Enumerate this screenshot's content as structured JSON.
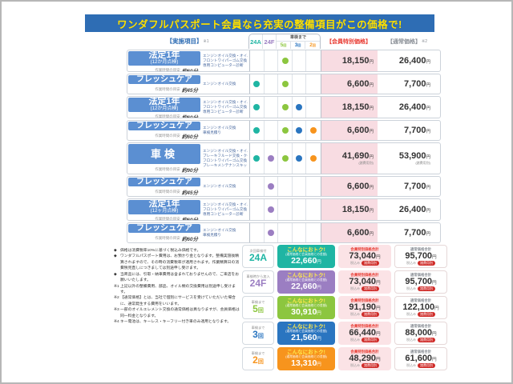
{
  "title": "ワンダフルパスポート会員なら充実の整備項目がこの価格で!",
  "colors": {
    "title_bg": "#2e6db4",
    "title_text": "#ffe100",
    "row_label_bg": "#5b8fd2",
    "member_cell_bg": "#f8dce2",
    "member_label_red": "#e8382f",
    "dot_columns": [
      "#1fb5a3",
      "#9b7ec2",
      "#8cc63f",
      "#2a75c0",
      "#f7941d"
    ]
  },
  "table": {
    "header": {
      "items_label": "【実施項目】",
      "items_note": "※1",
      "col_24a": "24A",
      "col_24f": "24F",
      "group_label": "車検まで",
      "counts": [
        "5回",
        "3回",
        "2回"
      ],
      "member_label": "【会員特別価格】",
      "normal_label": "【通常価格】",
      "normal_note": "※2"
    },
    "time_caption": "作業時間の目安",
    "yen": "円",
    "rows": [
      {
        "name": "法定1年",
        "name_sub": "(12か月点検)",
        "time": "約60分",
        "desc": [
          "エンジンオイル交換・オイルエレメント交換",
          "フロントワイパーゴム交換・キー電池交換",
          "専用コンピューター診断"
        ],
        "dots": [
          0,
          0,
          1,
          0,
          0
        ],
        "member": "18,150",
        "normal": "26,400",
        "price_note": ""
      },
      {
        "name": "フレッシュケア",
        "name_sub": "",
        "time": "約45分",
        "desc": [
          "エンジンオイル交換"
        ],
        "dots": [
          1,
          0,
          1,
          0,
          0
        ],
        "member": "6,600",
        "normal": "7,700",
        "price_note": ""
      },
      {
        "name": "法定1年",
        "name_sub": "(12か月点検)",
        "time": "約60分",
        "desc": [
          "エンジンオイル交換・オイルエレメント交換",
          "フロントワイパーゴム交換・キー電池交換",
          "専用コンピューター診断"
        ],
        "dots": [
          1,
          0,
          1,
          1,
          0
        ],
        "member": "18,150",
        "normal": "26,400",
        "price_note": ""
      },
      {
        "name": "フレッシュケア",
        "name_sub": "",
        "time": "約60分",
        "desc": [
          "エンジンオイル交換",
          "車検見積り"
        ],
        "dots": [
          1,
          0,
          1,
          1,
          1
        ],
        "member": "6,600",
        "normal": "7,700",
        "price_note": ""
      },
      {
        "name": "車検",
        "name_sub": "",
        "time": "約90分",
        "desc": [
          "エンジンオイル交換・オイルエレメント交換",
          "ブレーキフルード交換・クーラントプラスプレミアム",
          "フロントワイパーゴム交換・キー電池交換",
          "ブレーキメンテナンスキット・専用コンピューター診断"
        ],
        "dots": [
          1,
          1,
          1,
          1,
          1
        ],
        "member": "41,690",
        "normal": "53,900",
        "price_note": "(諸費用別)"
      },
      {
        "name": "フレッシュケア",
        "name_sub": "",
        "time": "約45分",
        "desc": [
          "エンジンオイル交換"
        ],
        "dots": [
          0,
          1,
          0,
          0,
          0
        ],
        "member": "6,600",
        "normal": "7,700",
        "price_note": ""
      },
      {
        "name": "法定1年",
        "name_sub": "(12ヶ月点検)",
        "time": "約60分",
        "desc": [
          "エンジンオイル交換・オイルエレメント交換",
          "フロントワイパーゴム交換・キー電池交換",
          "専用コンピューター診断"
        ],
        "dots": [
          0,
          1,
          0,
          0,
          0
        ],
        "member": "18,150",
        "normal": "26,400",
        "price_note": ""
      },
      {
        "name": "フレッシュケア",
        "name_sub": "",
        "time": "約60分",
        "desc": [
          "エンジンオイル交換",
          "車検見積り"
        ],
        "dots": [
          0,
          1,
          0,
          0,
          0
        ],
        "member": "6,600",
        "normal": "7,700",
        "price_note": ""
      }
    ]
  },
  "notes": [
    {
      "mark": "◆",
      "text": "価格は消費税率10%に基づく税込み価格です。"
    },
    {
      "mark": "◆",
      "text": "ワンダフルパスポート費用は、お預かり金となります。整備実施後精算されますので、その時の消費税率が適用されます。作業精算日の消費税見直しにつきましては別途申し受けます。"
    },
    {
      "mark": "◆",
      "text": "当商品には、引取・納車費用は含まれておりませんので、ご来店をお願いいたします。"
    },
    {
      "mark": "※1",
      "text": "上記以外の整備費用、部品、オイル類の交換費用は別途申し受けます。"
    },
    {
      "mark": "※2",
      "text": "【通常価格】とは、当社で個別にサービスを受けていただいた場合に、通常発生する費用をいいます。"
    },
    {
      "mark": "※3",
      "text": "一部のオイルエレメント交換の通常価格は異なりますが、会員価格は同一料金となります。"
    },
    {
      "mark": "※4",
      "text": "キー電池は、キーレス・キーフリー付き車のみ適用となります。"
    }
  ],
  "summary": {
    "otoku_title": "こんなにおトク!",
    "otoku_sub": "(通常価格と会員価格との差額)",
    "member_total_label": "会員特別価格合計",
    "normal_total_label": "通常価格合計",
    "tax_label": "税込み",
    "badge": "諸費用別",
    "yen": "円",
    "rows": [
      {
        "top": "次回車検付",
        "code": "24A",
        "code_suffix": "",
        "color": "#1fb5a3",
        "otoku": "22,660",
        "member": "73,040",
        "normal": "95,700"
      },
      {
        "top": "車検時から加入",
        "code": "24F",
        "code_suffix": "",
        "color": "#9b7ec2",
        "otoku": "22,660",
        "member": "73,040",
        "normal": "95,700"
      },
      {
        "top": "車検まで",
        "code": "5",
        "code_suffix": "回",
        "color": "#8cc63f",
        "otoku": "30,910",
        "member": "91,190",
        "normal": "122,100"
      },
      {
        "top": "車検まで",
        "code": "3",
        "code_suffix": "回",
        "color": "#2a75c0",
        "otoku": "21,560",
        "member": "66,440",
        "normal": "88,000"
      },
      {
        "top": "車検まで",
        "code": "2",
        "code_suffix": "回",
        "color": "#f7941d",
        "otoku": "13,310",
        "member": "48,290",
        "normal": "61,600"
      }
    ]
  }
}
